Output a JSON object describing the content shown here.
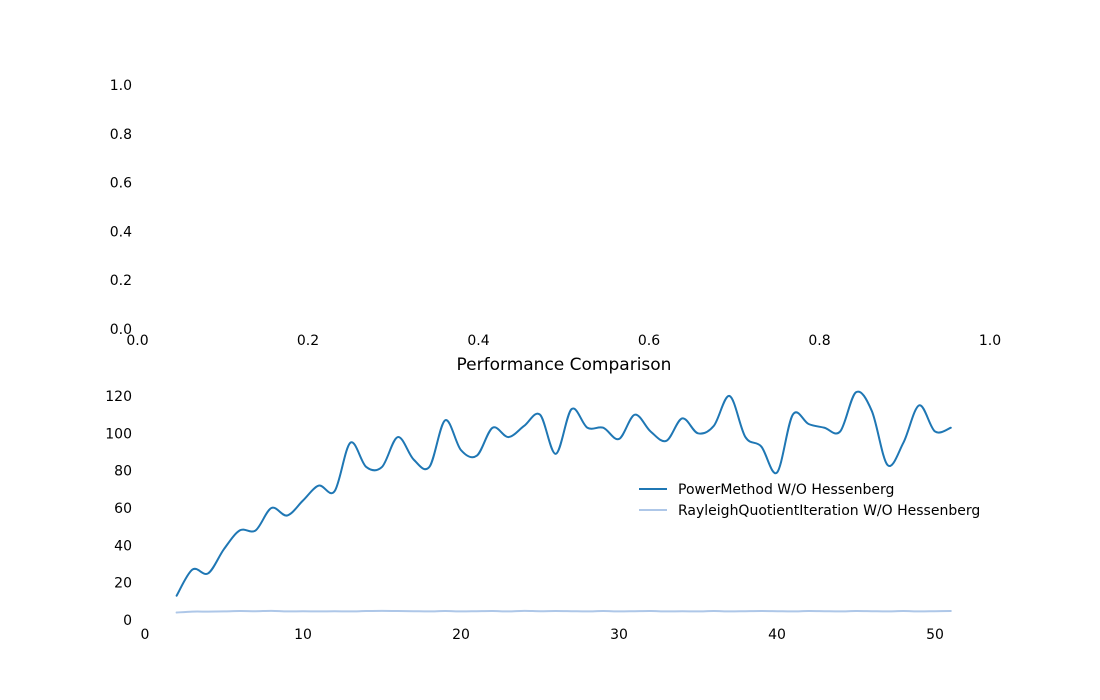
{
  "chart_data": [
    {
      "type": "line",
      "title": "",
      "xlabel": "",
      "ylabel": "",
      "xlim": [
        0.0,
        1.0
      ],
      "ylim": [
        0.0,
        1.0
      ],
      "xticks": [
        "0.0",
        "0.2",
        "0.4",
        "0.6",
        "0.8",
        "1.0"
      ],
      "yticks": [
        "0.0",
        "0.2",
        "0.4",
        "0.6",
        "0.8",
        "1.0"
      ],
      "grid": false,
      "series": []
    },
    {
      "type": "line",
      "title": "Performance Comparison",
      "xlabel": "",
      "ylabel": "",
      "xlim": [
        0,
        51.5
      ],
      "ylim": [
        0,
        125
      ],
      "xticks": [
        "0",
        "10",
        "20",
        "30",
        "40",
        "50"
      ],
      "yticks": [
        "0",
        "20",
        "40",
        "60",
        "80",
        "100",
        "120"
      ],
      "grid": false,
      "legend": "center-right",
      "series": [
        {
          "name": "PowerMethod W/O Hessenberg",
          "color": "#1f77b4",
          "x": [
            2,
            3,
            4,
            5,
            6,
            7,
            8,
            9,
            10,
            11,
            12,
            13,
            14,
            15,
            16,
            17,
            18,
            19,
            20,
            21,
            22,
            23,
            24,
            25,
            26,
            27,
            28,
            29,
            30,
            31,
            32,
            33,
            34,
            35,
            36,
            37,
            38,
            39,
            40,
            41,
            42,
            43,
            44,
            45,
            46,
            47,
            48,
            49,
            50,
            51
          ],
          "values": [
            13,
            27,
            25,
            38,
            48,
            48,
            60,
            56,
            64,
            72,
            69,
            95,
            82,
            82,
            98,
            86,
            82,
            107,
            91,
            88,
            103,
            98,
            104,
            110,
            89,
            113,
            103,
            103,
            97,
            110,
            101,
            96,
            108,
            100,
            104,
            120,
            98,
            93,
            79,
            110,
            105,
            103,
            101,
            122,
            112,
            83,
            95,
            115,
            101,
            103
          ]
        },
        {
          "name": "RayleighQuotientIteration W/O Hessenberg",
          "color": "#aec7e8",
          "x": [
            2,
            3,
            4,
            5,
            6,
            7,
            8,
            9,
            10,
            11,
            12,
            13,
            14,
            15,
            16,
            17,
            18,
            19,
            20,
            21,
            22,
            23,
            24,
            25,
            26,
            27,
            28,
            29,
            30,
            31,
            32,
            33,
            34,
            35,
            36,
            37,
            38,
            39,
            40,
            41,
            42,
            43,
            44,
            45,
            46,
            47,
            48,
            49,
            50,
            51
          ],
          "values": [
            4,
            4.5,
            4.5,
            4.6,
            4.8,
            4.7,
            4.9,
            4.6,
            4.7,
            4.6,
            4.7,
            4.6,
            4.8,
            4.9,
            4.8,
            4.7,
            4.6,
            4.8,
            4.6,
            4.7,
            4.8,
            4.6,
            4.9,
            4.7,
            4.8,
            4.7,
            4.6,
            4.8,
            4.6,
            4.7,
            4.8,
            4.6,
            4.7,
            4.6,
            4.8,
            4.6,
            4.7,
            4.8,
            4.7,
            4.6,
            4.8,
            4.7,
            4.6,
            4.8,
            4.7,
            4.6,
            4.8,
            4.6,
            4.7,
            4.8
          ]
        }
      ]
    }
  ]
}
